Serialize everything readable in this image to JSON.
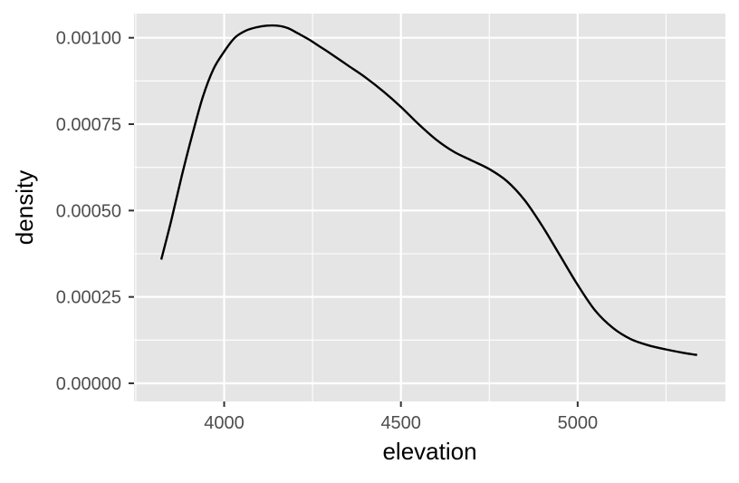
{
  "chart_data": {
    "type": "line",
    "title": "",
    "xlabel": "elevation",
    "ylabel": "density",
    "xlim": [
      3745,
      5418
    ],
    "ylim": [
      -5.25e-05,
      0.00107
    ],
    "x_ticks": [
      {
        "value": 4000,
        "label": "4000"
      },
      {
        "value": 4500,
        "label": "4500"
      },
      {
        "value": 5000,
        "label": "5000"
      }
    ],
    "x_minor_ticks": [
      3750,
      4250,
      4750,
      5250
    ],
    "y_ticks": [
      {
        "value": 0.0,
        "label": "0.00000"
      },
      {
        "value": 0.00025,
        "label": "0.00025"
      },
      {
        "value": 0.0005,
        "label": "0.00050"
      },
      {
        "value": 0.00075,
        "label": "0.00075"
      },
      {
        "value": 0.001,
        "label": "0.00100"
      }
    ],
    "y_minor_ticks": [
      0.000125,
      0.000375,
      0.000625,
      0.000875
    ],
    "grid": true,
    "legend": "none",
    "colors": {
      "panel": "#e5e5e5",
      "grid": "#ffffff",
      "line": "#000000",
      "axis_text": "#4d4d4d",
      "axis_title": "#000000",
      "tick": "#333333"
    },
    "series": [
      {
        "x": [
          3822,
          3850,
          3880,
          3910,
          3940,
          3970,
          4000,
          4030,
          4060,
          4090,
          4120,
          4150,
          4180,
          4210,
          4240,
          4270,
          4300,
          4350,
          4400,
          4450,
          4500,
          4550,
          4600,
          4650,
          4700,
          4750,
          4800,
          4850,
          4900,
          4950,
          5000,
          5050,
          5100,
          5150,
          5200,
          5250,
          5300,
          5338
        ],
        "y": [
          0.000358,
          0.00047,
          0.0006,
          0.00072,
          0.00083,
          0.00091,
          0.00096,
          0.001,
          0.00102,
          0.00103,
          0.001035,
          0.001035,
          0.001028,
          0.001012,
          0.000995,
          0.000975,
          0.000955,
          0.00092,
          0.000885,
          0.000845,
          0.0008,
          0.00075,
          0.000705,
          0.00067,
          0.000645,
          0.00062,
          0.000585,
          0.00053,
          0.000455,
          0.00037,
          0.000285,
          0.00021,
          0.00016,
          0.000128,
          0.00011,
          9.8e-05,
          8.8e-05,
          8.2e-05
        ]
      }
    ]
  }
}
